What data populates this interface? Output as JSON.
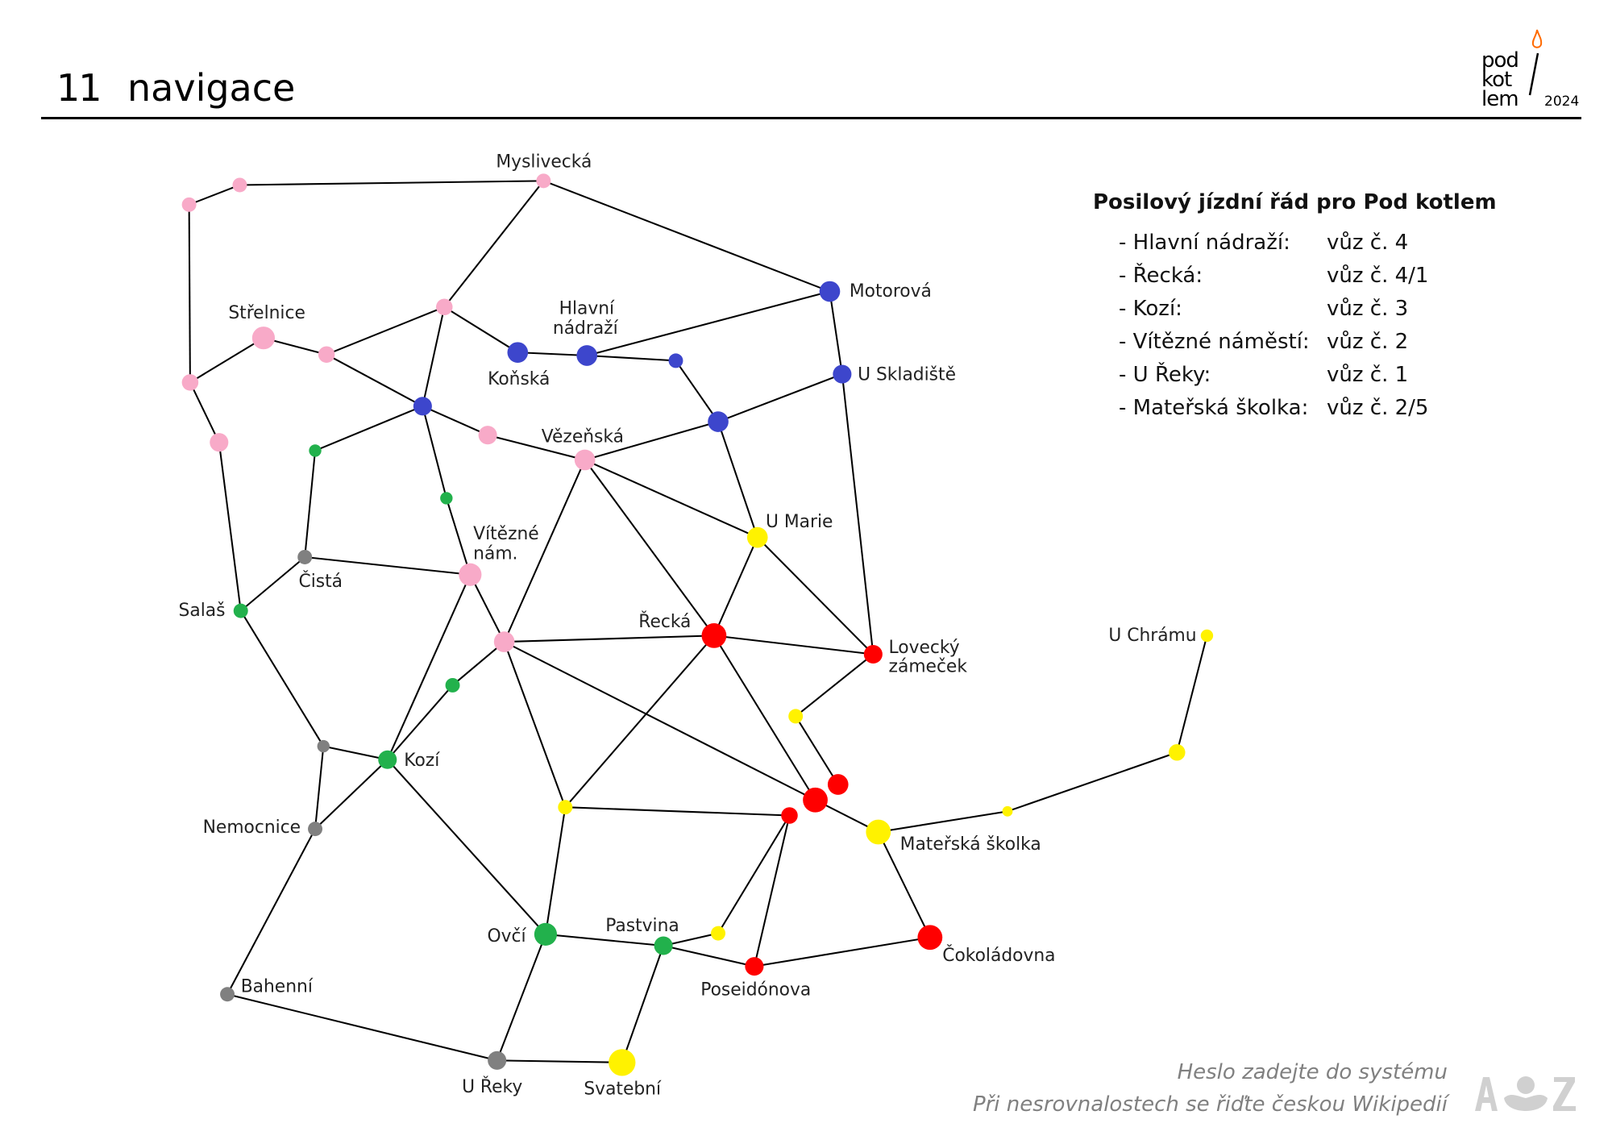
{
  "header": {
    "number": "11",
    "title": "navigace"
  },
  "logo": {
    "lines": [
      "pod",
      "kot",
      "lem"
    ],
    "year": "2024"
  },
  "timetable": {
    "title": "Posilový jízdní řád pro Pod kotlem",
    "rows": [
      {
        "stop": "- Hlavní nádraží:",
        "car": "vůz č. 4"
      },
      {
        "stop": "- Řecká:",
        "car": "vůz č. 4/1"
      },
      {
        "stop": "- Kozí:",
        "car": "vůz č. 3"
      },
      {
        "stop": "- Vítězné náměstí:",
        "car": "vůz č. 2"
      },
      {
        "stop": "- U Řeky:",
        "car": "vůz č. 1"
      },
      {
        "stop": "- Mateřská školka:",
        "car": "vůz č. 2/5"
      }
    ]
  },
  "footer": {
    "line1": "Heslo zadejte do systému",
    "line2": "Při nesrovnalostech se řiďte českou Wikipedií",
    "logo_text": "A Z"
  },
  "colors": {
    "pink": "#f8aac8",
    "blue": "#3d46cc",
    "green": "#22b14c",
    "gray": "#808080",
    "yellow": "#fff200",
    "red": "#ff0000",
    "flame": "#ff6a00"
  },
  "stations": {
    "mys": "Myslivecká",
    "mot": "Motorová",
    "str": "Střelnice",
    "kon": "Koňská",
    "hn1": "Hlavní",
    "hn2": "nádraží",
    "usk": "U Skladiště",
    "vez": "Vězeňská",
    "umar": "U Marie",
    "cis": "Čistá",
    "vit1": "Vítězné",
    "vit2": "nám.",
    "sal": "Salaš",
    "rec": "Řecká",
    "lov1": "Lovecký",
    "lov2": "zámeček",
    "uch": "U Chrámu",
    "koz": "Kozí",
    "mat": "Mateřská školka",
    "nem": "Nemocnice",
    "ovc": "Ovčí",
    "pas": "Pastvina",
    "cok": "Čokoládovna",
    "pos": "Poseidónova",
    "bah": "Bahenní",
    "urk": "U Řeky",
    "sva": "Svatební"
  }
}
